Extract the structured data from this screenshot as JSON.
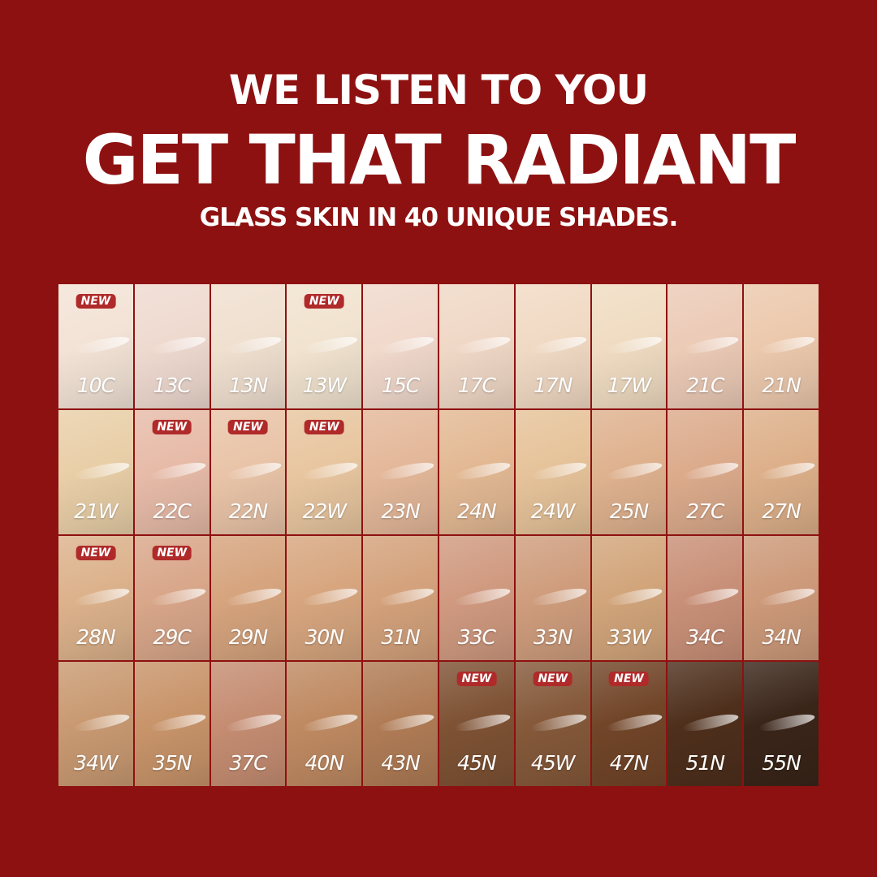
{
  "header": {
    "line1": "WE LISTEN TO YOU",
    "line2": "GET THAT RADIANT",
    "line3": "GLASS SKIN IN 40 UNIQUE SHADES."
  },
  "background_color": "#8e1111",
  "badge_label": "NEW",
  "shades": [
    {
      "name": "10C",
      "color": "#f3e3d6",
      "new": true
    },
    {
      "name": "13C",
      "color": "#efdad0",
      "new": false
    },
    {
      "name": "13N",
      "color": "#f0e0d0",
      "new": false
    },
    {
      "name": "13W",
      "color": "#f1e3cf",
      "new": true
    },
    {
      "name": "15C",
      "color": "#f1d9cc",
      "new": false
    },
    {
      "name": "17C",
      "color": "#f0d8c6",
      "new": false
    },
    {
      "name": "17N",
      "color": "#f1dac4",
      "new": false
    },
    {
      "name": "17W",
      "color": "#f0dcc2",
      "new": false
    },
    {
      "name": "21C",
      "color": "#eccbb7",
      "new": false
    },
    {
      "name": "21N",
      "color": "#ecc9ad",
      "new": false
    },
    {
      "name": "21W",
      "color": "#e9cfa8",
      "new": false
    },
    {
      "name": "22C",
      "color": "#e7bba8",
      "new": true
    },
    {
      "name": "22N",
      "color": "#e9c4a8",
      "new": true
    },
    {
      "name": "22W",
      "color": "#e8c6a0",
      "new": true
    },
    {
      "name": "23N",
      "color": "#e4b89a",
      "new": false
    },
    {
      "name": "24N",
      "color": "#e3b994",
      "new": false
    },
    {
      "name": "24W",
      "color": "#e6c39a",
      "new": false
    },
    {
      "name": "25N",
      "color": "#dfb28f",
      "new": false
    },
    {
      "name": "27C",
      "color": "#dcab8c",
      "new": false
    },
    {
      "name": "27N",
      "color": "#ddb08a",
      "new": false
    },
    {
      "name": "28N",
      "color": "#dcb28c",
      "new": true
    },
    {
      "name": "29C",
      "color": "#d9a78a",
      "new": true
    },
    {
      "name": "29N",
      "color": "#d6a47e",
      "new": false
    },
    {
      "name": "30N",
      "color": "#d7a67f",
      "new": false
    },
    {
      "name": "31N",
      "color": "#d4a27c",
      "new": false
    },
    {
      "name": "33C",
      "color": "#d09a80",
      "new": false
    },
    {
      "name": "33N",
      "color": "#cf9d7d",
      "new": false
    },
    {
      "name": "33W",
      "color": "#d2a57b",
      "new": false
    },
    {
      "name": "34C",
      "color": "#c99078",
      "new": false
    },
    {
      "name": "34N",
      "color": "#cd9a7a",
      "new": false
    },
    {
      "name": "34W",
      "color": "#c99a72",
      "new": false
    },
    {
      "name": "35N",
      "color": "#c8946a",
      "new": false
    },
    {
      "name": "37C",
      "color": "#c58d72",
      "new": false
    },
    {
      "name": "40N",
      "color": "#bf8a62",
      "new": false
    },
    {
      "name": "43N",
      "color": "#b07c56",
      "new": false
    },
    {
      "name": "45N",
      "color": "#7e5234",
      "new": true
    },
    {
      "name": "45W",
      "color": "#85593a",
      "new": true
    },
    {
      "name": "47N",
      "color": "#714528",
      "new": true
    },
    {
      "name": "51N",
      "color": "#4e2f1c",
      "new": false
    },
    {
      "name": "55N",
      "color": "#3a2519",
      "new": false
    }
  ]
}
